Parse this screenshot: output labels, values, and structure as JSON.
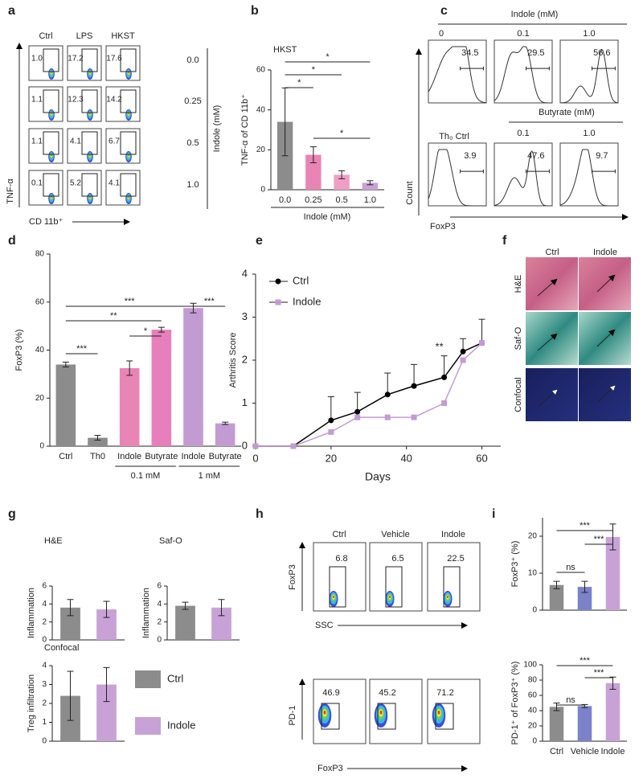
{
  "panel_labels": [
    "a",
    "b",
    "c",
    "d",
    "e",
    "f",
    "g",
    "h",
    "i"
  ],
  "panel_a": {
    "columns": [
      "Ctrl",
      "LPS",
      "HKST"
    ],
    "rows": [
      "0.0",
      "0.25",
      "0.5",
      "1.0"
    ],
    "row_title": "Indole (mM)",
    "y_axis": "TNF-α",
    "x_axis": "CD 11b⁺",
    "gates": [
      [
        "1.0",
        "17.2",
        "17.6"
      ],
      [
        "1.1",
        "12.3",
        "14.2"
      ],
      [
        "1.1",
        "4.1",
        "6.7"
      ],
      [
        "0.1",
        "5.2",
        "4.1"
      ]
    ]
  },
  "panel_c": {
    "title": "Indole (mM)",
    "top_columns": [
      "0",
      "0.1",
      "1.0"
    ],
    "top_gates": [
      "34.5",
      "29.5",
      "56.6"
    ],
    "bottom_first": "Th₀ Ctrl",
    "bottom_title": "Butyrate (mM)",
    "bottom_columns": [
      "0.1",
      "1.0"
    ],
    "bottom_gates": [
      "3.9",
      "47.6",
      "9.7"
    ],
    "y_axis": "Count",
    "x_axis": "FoxP3"
  },
  "panel_f": {
    "columns": [
      "Ctrl",
      "Indole"
    ],
    "rows": [
      "H&E",
      "Saf-O",
      "Confocal"
    ]
  },
  "panel_h": {
    "columns": [
      "Ctrl",
      "Vehicle",
      "Indole"
    ],
    "top_gates": [
      "6.8",
      "6.5",
      "22.5"
    ],
    "bottom_gates": [
      "46.9",
      "45.2",
      "71.2"
    ],
    "top_y": "FoxP3",
    "top_x": "SSC",
    "bottom_y": "PD-1",
    "bottom_x": "FoxP3"
  },
  "chart_data": [
    {
      "type": "bar",
      "title": "HKST",
      "y_label": "TNF-α of CD 11b⁺",
      "x_label": "Indole (mM)",
      "categories": [
        "0.0",
        "0.25",
        "0.5",
        "1.0"
      ],
      "values": [
        34,
        17.5,
        7.5,
        3.5
      ],
      "errors": [
        17,
        4,
        2,
        1
      ],
      "colors": [
        "#8c8c8c",
        "#e985b5",
        "#ef9fc6",
        "#c8a2d6"
      ],
      "ylim": [
        0,
        60
      ],
      "yticks": [
        0,
        20,
        40,
        60
      ],
      "annotations": [
        "*",
        "*",
        "*",
        "*"
      ]
    },
    {
      "type": "bar",
      "y_label": "FoxP3 (%)",
      "categories": [
        "Ctrl",
        "Th0",
        "Indole",
        "Butyrate",
        "Indole",
        "Butyrate"
      ],
      "values": [
        34,
        3.5,
        32.5,
        48.5,
        57.5,
        9.5
      ],
      "errors": [
        1,
        1,
        3,
        1,
        2,
        0.5
      ],
      "colors": [
        "#8c8c8c",
        "#8c8c8c",
        "#e985b5",
        "#e67fbc",
        "#c39bd3",
        "#c39bd3"
      ],
      "groups": [
        "0.1 mM",
        "1 mM"
      ],
      "ylim": [
        0,
        80
      ],
      "yticks": [
        0,
        20,
        40,
        60,
        80
      ],
      "annotations": [
        "***",
        "**",
        "*",
        "***",
        "***"
      ]
    },
    {
      "type": "line",
      "x_label": "Days",
      "y_label": "Arthritis Score",
      "x": [
        0,
        10,
        20,
        27,
        35,
        42,
        50,
        55,
        60
      ],
      "series": [
        {
          "name": "Ctrl",
          "color": "#000000",
          "values": [
            0,
            0,
            0.6,
            0.8,
            1.2,
            1.4,
            1.6,
            2.2,
            2.4
          ],
          "errors": [
            null,
            null,
            0.55,
            0.45,
            0.5,
            0.5,
            0.5,
            0.3,
            0.55
          ]
        },
        {
          "name": "Indole",
          "color": "#c39bd3",
          "values": [
            0,
            0,
            0.33,
            0.67,
            0.67,
            0.67,
            1.0,
            2.0,
            2.4
          ]
        }
      ],
      "xlim": [
        0,
        65
      ],
      "xticks": [
        0,
        20,
        40,
        60
      ],
      "ylim": [
        0,
        4
      ],
      "yticks": [
        0,
        1,
        2,
        3,
        4
      ],
      "annotations": [
        "**"
      ]
    },
    {
      "type": "bar",
      "series": [
        {
          "name": "Ctrl",
          "color": "#8c8c8c",
          "values": [
            3.6,
            3.8,
            2.4
          ],
          "errors": [
            0.9,
            0.4,
            1.3
          ]
        },
        {
          "name": "Indole",
          "color": "#c8a2d6",
          "values": [
            3.4,
            3.6,
            3.0
          ],
          "errors": [
            0.9,
            0.9,
            0.9
          ]
        }
      ],
      "panels": [
        {
          "title": "H&E",
          "y_label": "Inflammation",
          "ylim": [
            0,
            6
          ],
          "yticks": [
            0,
            2,
            4,
            6
          ]
        },
        {
          "title": "Saf-O",
          "y_label": "Inflammation",
          "ylim": [
            0,
            6
          ],
          "yticks": [
            0,
            2,
            4,
            6
          ]
        },
        {
          "title": "Confocal",
          "y_label": "Treg infiltration",
          "ylim": [
            0,
            4
          ],
          "yticks": [
            0,
            1,
            2,
            3,
            4
          ]
        }
      ]
    },
    {
      "type": "bar",
      "categories": [
        "Ctrl",
        "Vehicle",
        "Indole"
      ],
      "colors": [
        "#8c8c8c",
        "#7b82c9",
        "#c8a2d6"
      ],
      "panels": [
        {
          "y_label": "FoxP3⁺ (%)",
          "values": [
            6.8,
            6.3,
            19.8
          ],
          "errors": [
            1,
            1.5,
            3.5
          ],
          "ylim": [
            0,
            25
          ],
          "yticks": [
            0,
            10,
            20
          ],
          "annotations": [
            "***",
            "***",
            "ns"
          ]
        },
        {
          "y_label": "PD-1⁺ of FoxP3⁺ (%)",
          "values": [
            45,
            46,
            76
          ],
          "errors": [
            5,
            2,
            8
          ],
          "ylim": [
            0,
            100
          ],
          "yticks": [
            0,
            20,
            40,
            60,
            80,
            100
          ],
          "annotations": [
            "***",
            "***",
            "ns"
          ]
        }
      ]
    }
  ]
}
